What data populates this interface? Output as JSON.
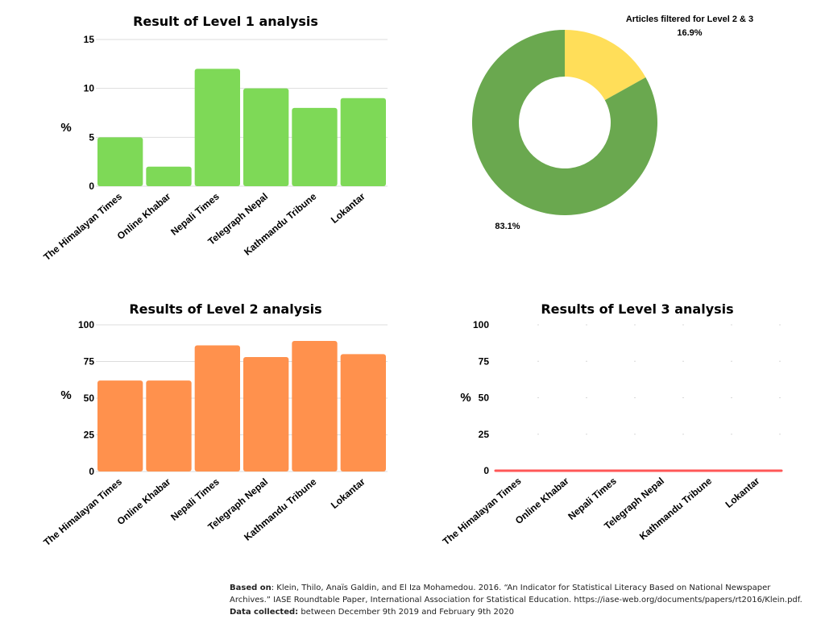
{
  "chart_data": [
    {
      "type": "bar",
      "title": "Result of Level 1 analysis",
      "ylabel": "%",
      "categories": [
        "The Himalayan Times",
        "Online Khabar",
        "Nepali Times",
        "Telegraph Nepal",
        "Kathmandu Tribune",
        "Lokantar"
      ],
      "values": [
        5,
        2,
        12,
        10,
        8,
        9
      ],
      "ylim": [
        0,
        15
      ],
      "yticks": [
        0,
        5,
        10,
        15
      ],
      "color": "#7ed957",
      "grid": true
    },
    {
      "type": "pie",
      "title": "Articles filtered for Level 2 & 3",
      "donut": true,
      "slices": [
        {
          "label": "16.9%",
          "value": 16.9,
          "color": "#ffde59"
        },
        {
          "label": "83.1%",
          "value": 83.1,
          "color": "#6aa84f"
        }
      ]
    },
    {
      "type": "bar",
      "title": "Results of Level 2 analysis",
      "ylabel": "%",
      "categories": [
        "The Himalayan Times",
        "Online Khabar",
        "Nepali Times",
        "Telegraph Nepal",
        "Kathmandu Tribune",
        "Lokantar"
      ],
      "values": [
        62,
        62,
        86,
        78,
        89,
        80
      ],
      "ylim": [
        0,
        100
      ],
      "yticks": [
        0,
        25,
        50,
        75,
        100
      ],
      "color": "#ff914d",
      "grid": true
    },
    {
      "type": "bar",
      "title": "Results of Level 3 analysis",
      "ylabel": "%",
      "categories": [
        "The Himalayan Times",
        "Online Khabar",
        "Nepali Times",
        "Telegraph Nepal",
        "Kathmandu Tribune",
        "Lokantar"
      ],
      "values": [
        0,
        0,
        0,
        0,
        0,
        0
      ],
      "ylim": [
        0,
        100
      ],
      "yticks": [
        0,
        25,
        50,
        75,
        100
      ],
      "color": "#ff5757",
      "grid": true
    }
  ],
  "footer": {
    "based_on_label": "Based on",
    "based_on_text": ": Klein, Thilo, Anaïs Galdin, and El Iza Mohamedou. 2016. “An Indicator for Statistical Literacy Based on National Newspaper Archives.” IASE Roundtable Paper, International Association for Statistical Education. https://iase-web.org/documents/papers/rt2016/Klein.pdf.",
    "collected_label": "Data collected:",
    "collected_text": "  between December 9th 2019 and February 9th 2020"
  }
}
